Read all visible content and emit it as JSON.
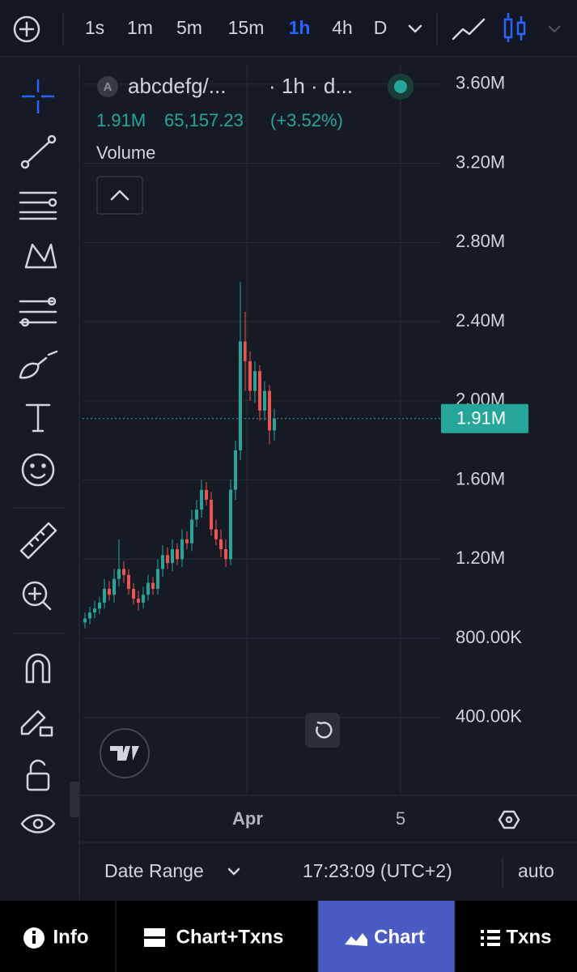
{
  "toolbar": {
    "intervals": [
      "1s",
      "1m",
      "5m",
      "15m",
      "1h",
      "4h",
      "D"
    ],
    "active": "1h"
  },
  "header": {
    "symbol_badge": "A",
    "symbol": "abcdefg/...",
    "meta": "· 1h · d...",
    "volume_value": "1.91M",
    "price": "65,157.23",
    "change": "(+3.52%)",
    "indicator": "Volume"
  },
  "chart_data": {
    "type": "candlestick",
    "up_color": "#26a69a",
    "down_color": "#ef5350",
    "open": [
      880000,
      900000,
      930000,
      950000,
      980000,
      1050000,
      1020000,
      1100000,
      1150000,
      1120000,
      1050000,
      1000000,
      980000,
      1020000,
      1080000,
      1050000,
      1150000,
      1220000,
      1180000,
      1250000,
      1200000,
      1300000,
      1280000,
      1400000,
      1450000,
      1550000,
      1500000,
      1350000,
      1300000,
      1250000,
      1200000,
      1550000,
      1750000,
      2300000,
      2200000,
      2050000,
      2150000,
      1950000,
      2050000,
      1850000
    ],
    "high": [
      930000,
      960000,
      990000,
      1010000,
      1100000,
      1090000,
      1150000,
      1300000,
      1190000,
      1150000,
      1080000,
      1040000,
      1060000,
      1120000,
      1110000,
      1200000,
      1270000,
      1260000,
      1300000,
      1280000,
      1350000,
      1340000,
      1450000,
      1500000,
      1600000,
      1590000,
      1540000,
      1400000,
      1350000,
      1300000,
      1600000,
      1800000,
      2600000,
      2450000,
      2250000,
      2200000,
      2180000,
      2100000,
      2080000,
      1960000
    ],
    "low": [
      850000,
      870000,
      900000,
      920000,
      950000,
      990000,
      980000,
      1060000,
      1080000,
      1020000,
      970000,
      940000,
      950000,
      990000,
      1020000,
      1020000,
      1110000,
      1150000,
      1140000,
      1170000,
      1160000,
      1250000,
      1240000,
      1360000,
      1410000,
      1470000,
      1320000,
      1270000,
      1210000,
      1160000,
      1170000,
      1500000,
      1700000,
      2050000,
      2000000,
      1990000,
      1900000,
      1900000,
      1780000,
      1800000
    ],
    "close": [
      900000,
      930000,
      950000,
      980000,
      1050000,
      1020000,
      1100000,
      1150000,
      1120000,
      1050000,
      1000000,
      980000,
      1020000,
      1080000,
      1050000,
      1150000,
      1220000,
      1180000,
      1250000,
      1200000,
      1300000,
      1280000,
      1400000,
      1450000,
      1550000,
      1500000,
      1350000,
      1300000,
      1250000,
      1200000,
      1550000,
      1750000,
      2300000,
      2200000,
      2050000,
      2150000,
      1950000,
      2050000,
      1850000,
      1910000
    ],
    "ylim": [
      14000,
      3706000
    ],
    "yticks": [
      {
        "value": 400000,
        "label": "400.00K"
      },
      {
        "value": 800000,
        "label": "800.00K"
      },
      {
        "value": 1200000,
        "label": "1.20M"
      },
      {
        "value": 1600000,
        "label": "1.60M"
      },
      {
        "value": 2000000,
        "label": "2.00M"
      },
      {
        "value": 2400000,
        "label": "2.40M"
      },
      {
        "value": 2800000,
        "label": "2.80M"
      },
      {
        "value": 3200000,
        "label": "3.20M"
      },
      {
        "value": 3600000,
        "label": "3.60M"
      }
    ],
    "last_price": {
      "value": 1910000,
      "label": "1.91M"
    },
    "x_labels": [
      "Apr",
      "5"
    ],
    "grid": true
  },
  "footer": {
    "date_range": "Date Range",
    "time": "17:23:09 (UTC+2)",
    "scale": "auto"
  },
  "tabs": {
    "items": [
      "Info",
      "Chart+Txns",
      "Chart",
      "Txns"
    ],
    "active": "Chart"
  }
}
